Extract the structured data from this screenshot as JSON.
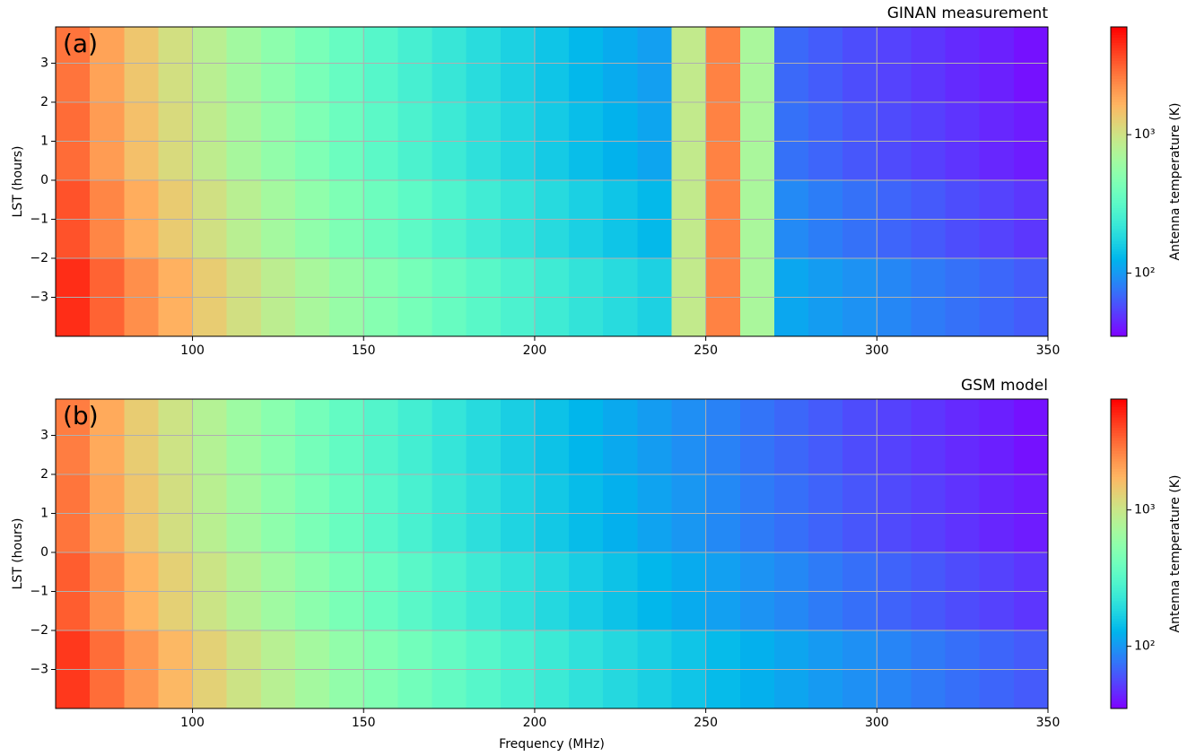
{
  "chart_data": [
    {
      "type": "heatmap",
      "title": "GINAN measurement",
      "label": "(a)",
      "colormap": "rainbow",
      "grid": true,
      "ylabel": "LST (hours)",
      "x": [
        65,
        75,
        85,
        95,
        105,
        115,
        125,
        135,
        145,
        155,
        165,
        175,
        185,
        195,
        205,
        215,
        225,
        235,
        245,
        255,
        265,
        275,
        285,
        295,
        305,
        315,
        325,
        335,
        345
      ],
      "y": [
        -3,
        -1,
        1,
        3
      ],
      "values": [
        [
          4483,
          3113,
          2261,
          1705,
          1320,
          1045,
          847,
          693,
          578,
          489,
          417,
          359,
          311,
          272,
          240,
          212,
          189,
          169,
          900,
          2500,
          700,
          113,
          103,
          95,
          87,
          80,
          74,
          69,
          64
        ],
        [
          3505,
          2434,
          1767,
          1333,
          1032,
          817,
          662,
          542,
          452,
          382,
          326,
          280,
          243,
          213,
          187,
          166,
          148,
          132,
          900,
          2500,
          700,
          89,
          81,
          74,
          68,
          63,
          58,
          54,
          50
        ],
        [
          2934,
          2038,
          1480,
          1116,
          864,
          684,
          554,
          454,
          378,
          320,
          273,
          235,
          204,
          178,
          157,
          139,
          124,
          111,
          900,
          2500,
          700,
          74,
          68,
          62,
          57,
          53,
          49,
          45,
          42
        ],
        [
          2771,
          1924,
          1397,
          1054,
          816,
          646,
          524,
          428,
          357,
          302,
          258,
          222,
          192,
          168,
          148,
          131,
          117,
          105,
          900,
          2500,
          700,
          70,
          64,
          58,
          54,
          50,
          46,
          43,
          39
        ]
      ],
      "xlim": [
        60,
        350
      ],
      "ylim": [
        -4,
        3.93
      ],
      "xticks": [
        100,
        150,
        200,
        250,
        300,
        350
      ],
      "yticks": [
        {
          "value": -3,
          "label": "−3"
        },
        {
          "value": -2,
          "label": "−2"
        },
        {
          "value": -1,
          "label": "−1"
        },
        0,
        1,
        2,
        3
      ],
      "colorbar": {
        "label": "Antenna temperature (K)",
        "log": true,
        "lim": [
          35,
          6000
        ],
        "ticks": [
          {
            "value": 100,
            "label": "10²"
          },
          {
            "value": 1000,
            "label": "10³"
          }
        ]
      }
    },
    {
      "type": "heatmap",
      "title": "GSM model",
      "label": "(b)",
      "colormap": "rainbow",
      "grid": true,
      "ylabel": "LST (hours)",
      "xlabel": "Frequency (MHz)",
      "x": [
        65,
        75,
        85,
        95,
        105,
        115,
        125,
        135,
        145,
        155,
        165,
        175,
        185,
        195,
        205,
        215,
        225,
        235,
        245,
        255,
        265,
        275,
        285,
        295,
        305,
        315,
        325,
        335,
        345
      ],
      "y": [
        -3,
        -1,
        1,
        3
      ],
      "values": [
        [
          4483,
          3113,
          2261,
          1705,
          1320,
          1045,
          847,
          693,
          578,
          489,
          417,
          359,
          311,
          272,
          240,
          212,
          189,
          169,
          152,
          138,
          124,
          113,
          103,
          95,
          87,
          80,
          74,
          69,
          64
        ],
        [
          3505,
          2434,
          1767,
          1333,
          1032,
          817,
          662,
          542,
          452,
          382,
          326,
          280,
          243,
          213,
          187,
          166,
          148,
          132,
          119,
          108,
          97,
          89,
          81,
          74,
          68,
          63,
          58,
          54,
          50
        ],
        [
          2934,
          2038,
          1480,
          1116,
          864,
          684,
          554,
          454,
          378,
          320,
          273,
          235,
          204,
          178,
          157,
          139,
          124,
          111,
          100,
          90,
          81,
          74,
          68,
          62,
          57,
          53,
          49,
          45,
          42
        ],
        [
          2771,
          1924,
          1397,
          1054,
          816,
          646,
          524,
          428,
          357,
          302,
          258,
          222,
          192,
          168,
          148,
          131,
          117,
          105,
          94,
          85,
          77,
          70,
          64,
          58,
          54,
          50,
          46,
          43,
          39
        ]
      ],
      "xlim": [
        60,
        350
      ],
      "ylim": [
        -4,
        3.93
      ],
      "xticks": [
        100,
        150,
        200,
        250,
        300,
        350
      ],
      "yticks": [
        {
          "value": -3,
          "label": "−3"
        },
        {
          "value": -2,
          "label": "−2"
        },
        {
          "value": -1,
          "label": "−1"
        },
        0,
        1,
        2,
        3
      ],
      "colorbar": {
        "label": "Antenna temperature (K)",
        "log": true,
        "lim": [
          35,
          6500
        ],
        "ticks": [
          {
            "value": 100,
            "label": "10²"
          },
          {
            "value": 1000,
            "label": "10³"
          }
        ]
      }
    }
  ]
}
